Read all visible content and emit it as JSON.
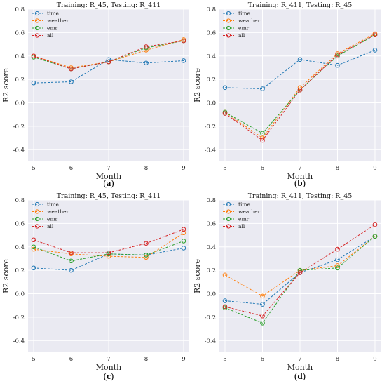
{
  "chart_data": [
    {
      "type": "line",
      "panel_letter": "a",
      "title": "Training: R_45, Testing: R_411",
      "xlabel": "Month",
      "ylabel": "R2 score",
      "x": [
        5,
        6,
        7,
        8,
        9
      ],
      "ylim": [
        -0.5,
        0.8
      ],
      "yticks": [
        "-0.4",
        "-0.2",
        "0.0",
        "0.2",
        "0.4",
        "0.6",
        "0.8"
      ],
      "grid": true,
      "legend_placement": "top-left",
      "series": [
        {
          "name": "time",
          "color": "#1f77b4",
          "values": [
            0.17,
            0.18,
            0.37,
            0.34,
            0.36
          ]
        },
        {
          "name": "weather",
          "color": "#ff7f0e",
          "values": [
            0.4,
            0.3,
            0.35,
            0.45,
            0.54
          ]
        },
        {
          "name": "emr",
          "color": "#2ca02c",
          "values": [
            0.39,
            0.29,
            0.35,
            0.47,
            0.53
          ]
        },
        {
          "name": "all",
          "color": "#d62728",
          "values": [
            0.4,
            0.29,
            0.35,
            0.48,
            0.53
          ]
        }
      ]
    },
    {
      "type": "line",
      "panel_letter": "b",
      "title": "Training: R_411, Testing: R_45",
      "xlabel": "Month",
      "ylabel": "R2 score",
      "x": [
        5,
        6,
        7,
        8,
        9
      ],
      "ylim": [
        -0.5,
        0.8
      ],
      "yticks": [
        "-0.4",
        "-0.2",
        "0.0",
        "0.2",
        "0.4",
        "0.6",
        "0.8"
      ],
      "grid": true,
      "legend_placement": "top-left",
      "series": [
        {
          "name": "time",
          "color": "#1f77b4",
          "values": [
            0.13,
            0.12,
            0.37,
            0.32,
            0.45
          ]
        },
        {
          "name": "weather",
          "color": "#ff7f0e",
          "values": [
            -0.08,
            -0.3,
            0.13,
            0.42,
            0.59
          ]
        },
        {
          "name": "emr",
          "color": "#2ca02c",
          "values": [
            -0.08,
            -0.26,
            0.11,
            0.4,
            0.58
          ]
        },
        {
          "name": "all",
          "color": "#d62728",
          "values": [
            -0.09,
            -0.32,
            0.11,
            0.41,
            0.58
          ]
        }
      ]
    },
    {
      "type": "line",
      "panel_letter": "c",
      "title": "Training: R_45, Testing: R_411",
      "xlabel": "Month",
      "ylabel": "R2 score",
      "x": [
        5,
        6,
        7,
        8,
        9
      ],
      "ylim": [
        -0.5,
        0.8
      ],
      "yticks": [
        "-0.4",
        "-0.2",
        "0.0",
        "0.2",
        "0.4",
        "0.6",
        "0.8"
      ],
      "grid": true,
      "legend_placement": "top-left",
      "series": [
        {
          "name": "time",
          "color": "#1f77b4",
          "values": [
            0.22,
            0.2,
            0.34,
            0.33,
            0.39
          ]
        },
        {
          "name": "weather",
          "color": "#ff7f0e",
          "values": [
            0.38,
            0.34,
            0.32,
            0.31,
            0.52
          ]
        },
        {
          "name": "emr",
          "color": "#2ca02c",
          "values": [
            0.4,
            0.28,
            0.34,
            0.33,
            0.45
          ]
        },
        {
          "name": "all",
          "color": "#d62728",
          "values": [
            0.46,
            0.35,
            0.35,
            0.43,
            0.55
          ]
        }
      ]
    },
    {
      "type": "line",
      "panel_letter": "d",
      "title": "Training: R_411, Testing: R_45",
      "xlabel": "Month",
      "ylabel": "R2 score",
      "x": [
        5,
        6,
        7,
        8,
        9
      ],
      "ylim": [
        -0.5,
        0.8
      ],
      "yticks": [
        "-0.4",
        "-0.2",
        "0.0",
        "0.2",
        "0.4",
        "0.6",
        "0.8"
      ],
      "grid": true,
      "legend_placement": "top-left",
      "series": [
        {
          "name": "time",
          "color": "#1f77b4",
          "values": [
            -0.06,
            -0.09,
            0.18,
            0.29,
            0.49
          ]
        },
        {
          "name": "weather",
          "color": "#ff7f0e",
          "values": [
            0.16,
            -0.02,
            0.2,
            0.24,
            0.49
          ]
        },
        {
          "name": "emr",
          "color": "#2ca02c",
          "values": [
            -0.12,
            -0.25,
            0.2,
            0.22,
            0.49
          ]
        },
        {
          "name": "all",
          "color": "#d62728",
          "values": [
            -0.11,
            -0.19,
            0.18,
            0.38,
            0.59
          ]
        }
      ]
    }
  ]
}
